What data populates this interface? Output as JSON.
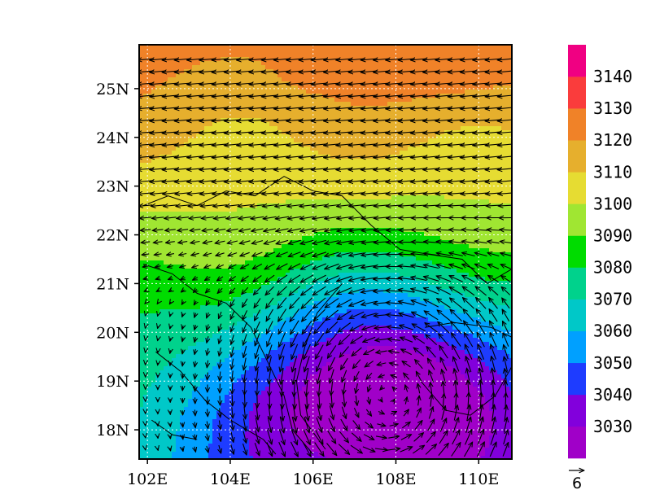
{
  "chart_data": {
    "type": "heatmap",
    "title": "",
    "xlabel": "",
    "ylabel": "",
    "xlim": [
      101.8,
      110.8
    ],
    "ylim": [
      17.4,
      25.9
    ],
    "x_ticks": [
      102,
      104,
      106,
      108,
      110
    ],
    "x_tick_labels": [
      "102E",
      "104E",
      "106E",
      "108E",
      "110E"
    ],
    "y_ticks": [
      18,
      19,
      20,
      21,
      22,
      23,
      24,
      25
    ],
    "y_tick_labels": [
      "18N",
      "19N",
      "20N",
      "21N",
      "22N",
      "23N",
      "24N",
      "25N"
    ],
    "grid": true,
    "legend_placement": "right",
    "contour_levels": [
      3030,
      3040,
      3050,
      3060,
      3070,
      3080,
      3090,
      3100,
      3110,
      3120,
      3130,
      3140
    ],
    "colorbar_labels": [
      "3030",
      "3040",
      "3050",
      "3060",
      "3070",
      "3080",
      "3090",
      "3100",
      "3110",
      "3120",
      "3130",
      "3140"
    ],
    "colors": [
      "#a000c8",
      "#8200dc",
      "#1e3cff",
      "#00a0ff",
      "#00c8c8",
      "#00d28c",
      "#00dc00",
      "#a0e632",
      "#e6dc32",
      "#e6af2d",
      "#f08228",
      "#fa3c3c",
      "#f00082"
    ],
    "low_center": [
      107.8,
      18.7
    ],
    "low_center_value": 3025,
    "vector_reference_label": "6",
    "vector_reference_magnitude": 6,
    "wind_description": "cyclonic (counter-clockwise) circulation around the low; easterly flow in the north"
  }
}
